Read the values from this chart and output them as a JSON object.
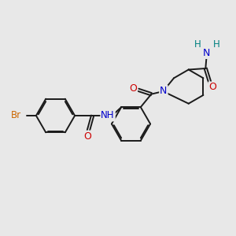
{
  "bg_color": "#e8e8e8",
  "bond_color": "#1a1a1a",
  "bond_width": 1.4,
  "dbo": 0.06,
  "atom_colors": {
    "Br": "#cc6600",
    "O": "#cc0000",
    "N": "#0000cc",
    "H": "#008080",
    "C": "#1a1a1a"
  },
  "font_size": 8.5,
  "fig_size": [
    3.0,
    3.0
  ],
  "dpi": 100,
  "xlim": [
    0,
    10
  ],
  "ylim": [
    0,
    10
  ]
}
